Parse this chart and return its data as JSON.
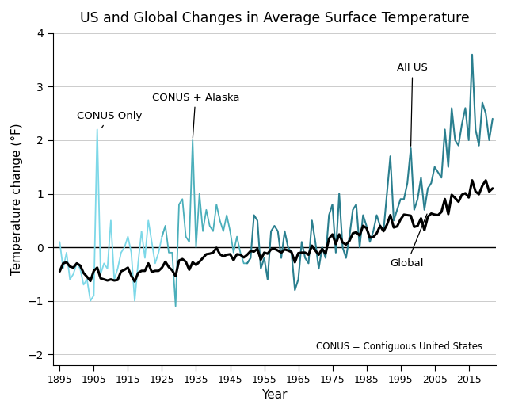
{
  "title": "US and Global Changes in Average Surface Temperature",
  "ylabel": "Temperature change (°F)",
  "xlabel": "Year",
  "annotation_conus": "CONUS Only",
  "annotation_conus_alaska": "CONUS + Alaska",
  "annotation_all_us": "All US",
  "annotation_global": "Global",
  "annotation_footnote": "CONUS = Contiguous United States",
  "color_conus": "#7DD8E8",
  "color_conus_alaska": "#4BAFBB",
  "color_all_us": "#2A7F8F",
  "color_global": "#000000",
  "ylim": [
    -2.2,
    4.0
  ],
  "xlim": [
    1893,
    2023
  ],
  "years_all": [
    1895,
    1896,
    1897,
    1898,
    1899,
    1900,
    1901,
    1902,
    1903,
    1904,
    1905,
    1906,
    1907,
    1908,
    1909,
    1910,
    1911,
    1912,
    1913,
    1914,
    1915,
    1916,
    1917,
    1918,
    1919,
    1920,
    1921,
    1922,
    1923,
    1924,
    1925,
    1926,
    1927,
    1928,
    1929,
    1930,
    1931,
    1932,
    1933,
    1934,
    1935,
    1936,
    1937,
    1938,
    1939,
    1940,
    1941,
    1942,
    1943,
    1944,
    1945,
    1946,
    1947,
    1948,
    1949,
    1950,
    1951,
    1952,
    1953,
    1954,
    1955,
    1956,
    1957,
    1958,
    1959,
    1960,
    1961,
    1962,
    1963,
    1964,
    1965,
    1966,
    1967,
    1968,
    1969,
    1970,
    1971,
    1972,
    1973,
    1974,
    1975,
    1976,
    1977,
    1978,
    1979,
    1980,
    1981,
    1982,
    1983,
    1984,
    1985,
    1986,
    1987,
    1988,
    1989,
    1990,
    1991,
    1992,
    1993,
    1994,
    1995,
    1996,
    1997,
    1998,
    1999,
    2000,
    2001,
    2002,
    2003,
    2004,
    2005,
    2006,
    2007,
    2008,
    2009,
    2010,
    2011,
    2012,
    2013,
    2014,
    2015,
    2016,
    2017,
    2018,
    2019,
    2020,
    2021,
    2022
  ],
  "us_temp": [
    0.1,
    -0.4,
    -0.1,
    -0.6,
    -0.5,
    -0.3,
    -0.4,
    -0.7,
    -0.6,
    -1.0,
    -0.9,
    2.2,
    -0.5,
    -0.3,
    -0.4,
    0.5,
    -0.6,
    -0.4,
    -0.1,
    0.0,
    0.2,
    -0.1,
    -1.0,
    -0.3,
    0.3,
    -0.2,
    0.5,
    0.1,
    -0.3,
    -0.1,
    0.2,
    0.4,
    -0.1,
    -0.1,
    -1.1,
    0.8,
    0.9,
    0.2,
    0.1,
    2.0,
    0.0,
    1.0,
    0.3,
    0.7,
    0.4,
    0.3,
    0.8,
    0.5,
    0.3,
    0.6,
    0.3,
    -0.1,
    0.2,
    -0.1,
    -0.3,
    -0.3,
    -0.2,
    0.6,
    0.5,
    -0.4,
    -0.2,
    -0.6,
    0.3,
    0.4,
    0.3,
    -0.2,
    0.3,
    0.0,
    -0.1,
    -0.8,
    -0.6,
    0.1,
    -0.2,
    -0.3,
    0.5,
    0.1,
    -0.4,
    0.0,
    -0.2,
    0.6,
    0.8,
    -0.1,
    1.0,
    -0.0,
    -0.2,
    0.2,
    0.7,
    0.8,
    0.0,
    0.6,
    0.4,
    0.1,
    0.3,
    0.6,
    0.4,
    0.3,
    1.0,
    1.7,
    0.5,
    0.7,
    0.9,
    0.9,
    1.2,
    1.85,
    0.7,
    0.9,
    1.3,
    0.7,
    1.1,
    1.2,
    1.5,
    1.4,
    1.3,
    2.2,
    1.5,
    2.6,
    2.0,
    1.9,
    2.3,
    2.6,
    2.0,
    3.6,
    2.2,
    1.9,
    2.7,
    2.5,
    2.0,
    2.4
  ],
  "global_temp": [
    -0.45,
    -0.3,
    -0.28,
    -0.36,
    -0.38,
    -0.3,
    -0.34,
    -0.48,
    -0.55,
    -0.63,
    -0.44,
    -0.38,
    -0.58,
    -0.6,
    -0.62,
    -0.6,
    -0.62,
    -0.61,
    -0.45,
    -0.42,
    -0.38,
    -0.53,
    -0.64,
    -0.48,
    -0.44,
    -0.44,
    -0.3,
    -0.46,
    -0.44,
    -0.44,
    -0.38,
    -0.27,
    -0.37,
    -0.43,
    -0.54,
    -0.25,
    -0.22,
    -0.27,
    -0.42,
    -0.28,
    -0.33,
    -0.27,
    -0.2,
    -0.13,
    -0.12,
    -0.1,
    -0.01,
    -0.13,
    -0.17,
    -0.14,
    -0.13,
    -0.24,
    -0.13,
    -0.14,
    -0.19,
    -0.14,
    -0.07,
    -0.08,
    -0.03,
    -0.23,
    -0.1,
    -0.12,
    -0.04,
    -0.03,
    -0.06,
    -0.1,
    -0.04,
    -0.06,
    -0.09,
    -0.28,
    -0.11,
    -0.1,
    -0.1,
    -0.14,
    0.03,
    -0.06,
    -0.14,
    -0.03,
    -0.12,
    0.16,
    0.24,
    0.06,
    0.24,
    0.09,
    0.05,
    0.12,
    0.26,
    0.28,
    0.22,
    0.4,
    0.36,
    0.18,
    0.19,
    0.26,
    0.4,
    0.3,
    0.42,
    0.6,
    0.37,
    0.39,
    0.52,
    0.61,
    0.6,
    0.59,
    0.38,
    0.4,
    0.54,
    0.32,
    0.57,
    0.63,
    0.61,
    0.6,
    0.66,
    0.9,
    0.62,
    0.98,
    0.92,
    0.85,
    0.98,
    1.01,
    0.93,
    1.25,
    1.04,
    0.99,
    1.15,
    1.25,
    1.04,
    1.1
  ]
}
